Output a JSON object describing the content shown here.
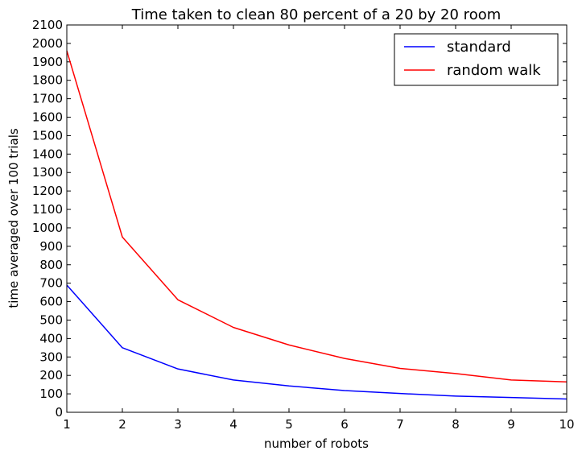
{
  "chart_data": {
    "type": "line",
    "title": "Time taken to clean 80 percent of a 20 by 20 room",
    "xlabel": "number of robots",
    "ylabel": "time averaged over 100 trials",
    "x": [
      1,
      2,
      3,
      4,
      5,
      6,
      7,
      8,
      9,
      10
    ],
    "xlim": [
      1,
      10
    ],
    "ylim": [
      0,
      2100
    ],
    "xticks": [
      "1",
      "2",
      "3",
      "4",
      "5",
      "6",
      "7",
      "8",
      "9",
      "10"
    ],
    "yticks": [
      "0",
      "100",
      "200",
      "300",
      "400",
      "500",
      "600",
      "700",
      "800",
      "900",
      "1000",
      "1100",
      "1200",
      "1300",
      "1400",
      "1500",
      "1600",
      "1700",
      "1800",
      "1900",
      "2000",
      "2100"
    ],
    "grid": false,
    "legend_position": "top-right",
    "series": [
      {
        "name": "standard",
        "color": "#0000ff",
        "values": [
          690,
          350,
          235,
          175,
          143,
          118,
          102,
          88,
          80,
          72
        ]
      },
      {
        "name": "random walk",
        "color": "#ff0000",
        "values": [
          1960,
          950,
          610,
          460,
          365,
          292,
          238,
          210,
          175,
          165
        ]
      }
    ]
  }
}
